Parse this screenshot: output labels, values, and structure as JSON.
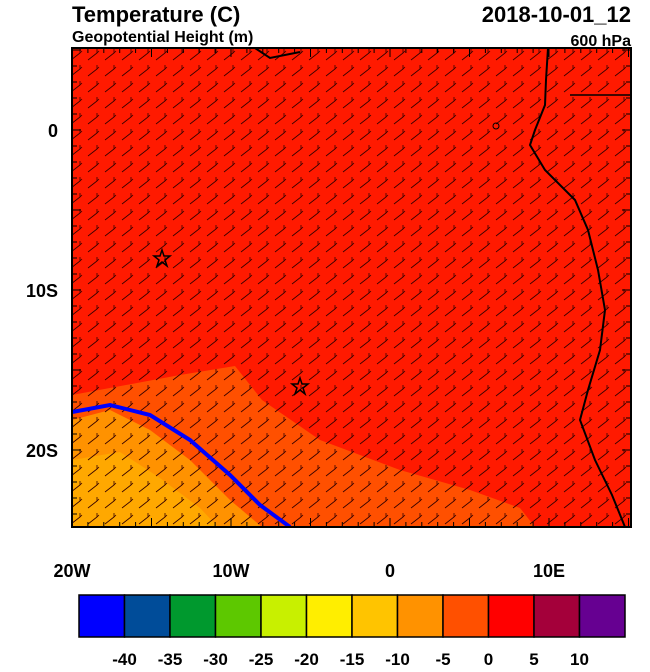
{
  "header": {
    "title": "Temperature (C)",
    "subtitle": "Geopotential Height (m)",
    "datetime": "2018-10-01_12",
    "level": "600 hPa"
  },
  "map": {
    "lat_labels": [
      "0",
      "10S",
      "20S"
    ],
    "lon_labels": [
      "20W",
      "10W",
      "0",
      "10E"
    ]
  },
  "colorbar": {
    "levels": [
      -40,
      -35,
      -30,
      -25,
      -20,
      -15,
      -10,
      -5,
      0,
      5,
      10
    ],
    "colors": [
      "#0000ff",
      "#004c99",
      "#00992e",
      "#5dc800",
      "#c8f000",
      "#ffee00",
      "#ffc400",
      "#ff9200",
      "#ff5000",
      "#ff0000",
      "#a4003a",
      "#660091"
    ]
  }
}
